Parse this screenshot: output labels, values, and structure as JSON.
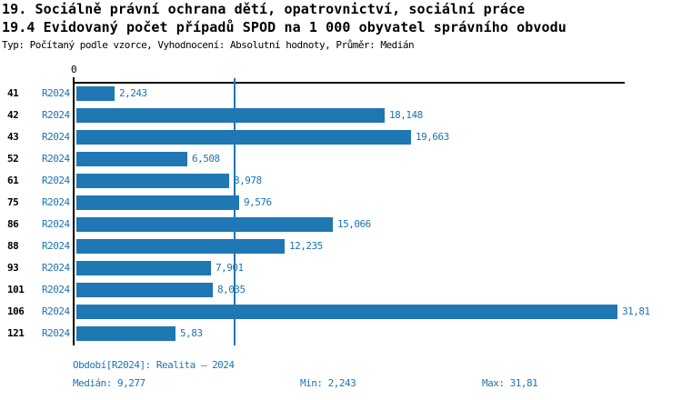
{
  "header": {
    "title_line1": "19. Sociálně právní ochrana dětí, opatrovnictví, sociální práce",
    "title_line2": "19.4 Evidovaný počet případů SPOD na 1 000 obyvatel správního obvodu",
    "subtitle": "Typ: Počítaný podle vzorce, Vyhodnocení: Absolutní hodnoty, Průměr: Medián"
  },
  "colors": {
    "bar": "#1F77B4",
    "accent_text": "#1C74B4",
    "axis": "#000000",
    "median_line": "#1F77B4"
  },
  "chart_data": {
    "type": "bar",
    "orientation": "horizontal",
    "title": "19.4 Evidovaný počet případů SPOD na 1 000 obyvatel správního obvodu",
    "axis_zero_label": "0",
    "series_label": "R2024",
    "categories": [
      "41",
      "42",
      "43",
      "52",
      "61",
      "75",
      "86",
      "88",
      "93",
      "101",
      "106",
      "121"
    ],
    "values": [
      2.243,
      18.148,
      19.663,
      6.508,
      8.978,
      9.576,
      15.066,
      12.235,
      7.901,
      8.035,
      31.81,
      5.83
    ],
    "value_labels": [
      "2,243",
      "18,148",
      "19,663",
      "6,508",
      "8,978",
      "9,576",
      "15,066",
      "12,235",
      "7,901",
      "8,035",
      "31,81",
      "5,83"
    ],
    "xlim": [
      0,
      32.25
    ],
    "median": 9.277,
    "grid": "median-line-only",
    "legend": "none"
  },
  "footer": {
    "period": "Období[R2024]: Realita – 2024",
    "median": "Medián: 9,277",
    "min": "Min: 2,243",
    "max": "Max: 31,81"
  }
}
